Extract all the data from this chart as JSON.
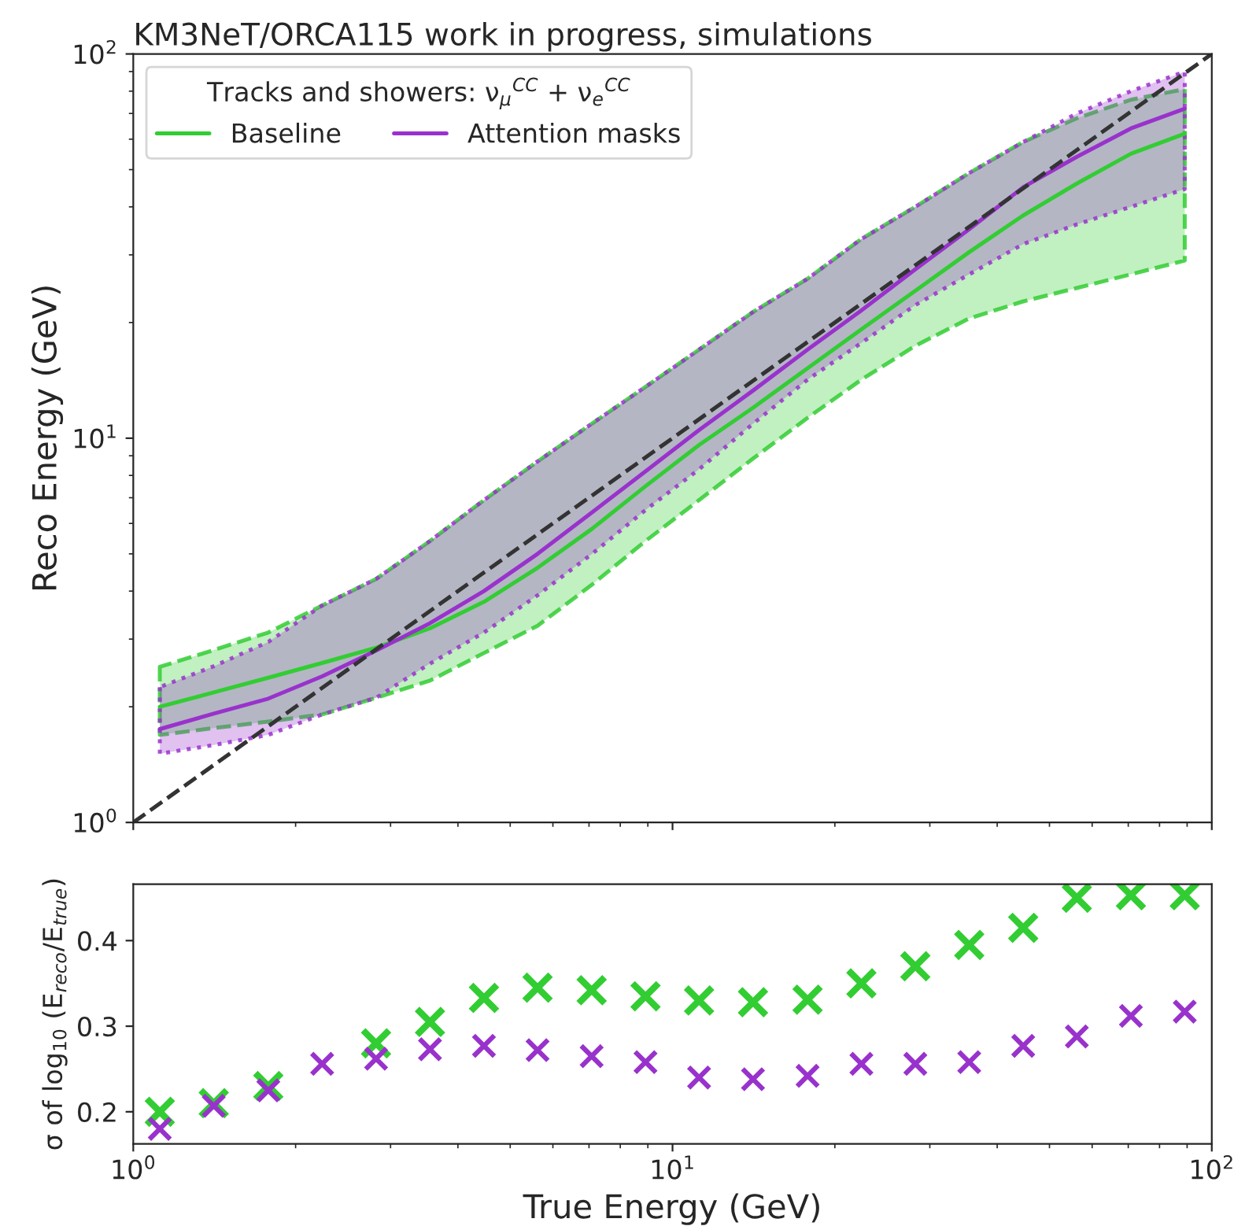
{
  "chart_data": [
    {
      "type": "line",
      "title": "KM3NeT/ORCA115 work in progress, simulations",
      "ylabel": "Reco Energy (GeV)",
      "legend_title": "Tracks and showers: ν$_{μ}$$^{CC}$ + ν$_{e}$$^{CC}$",
      "legend": "top left",
      "log": "xy",
      "tick_labels": "y",
      "line_style": "solid",
      "x": [
        1.12,
        1.41,
        1.78,
        2.24,
        2.82,
        3.55,
        4.47,
        5.62,
        7.08,
        8.91,
        11.2,
        14.1,
        17.8,
        22.4,
        28.2,
        35.5,
        44.7,
        56.2,
        70.8,
        89.1
      ],
      "xlim": [
        1,
        100
      ],
      "ylim": [
        1,
        100
      ],
      "xticks": [
        1,
        10,
        100
      ],
      "yticks": [
        {
          "value": 1,
          "label": "10$^{0}$"
        },
        {
          "value": 10,
          "label": "10$^{1}$"
        },
        {
          "value": 100,
          "label": "10$^{2}$"
        }
      ],
      "series": [
        {
          "name": "Baseline",
          "color": "#32cd32",
          "values": [
            2.0,
            2.18,
            2.38,
            2.6,
            2.85,
            3.2,
            3.75,
            4.6,
            5.8,
            7.5,
            9.6,
            12.0,
            15.2,
            19.2,
            24.2,
            30.5,
            38,
            46,
            55,
            62
          ],
          "lower": [
            1.69,
            1.76,
            1.83,
            1.91,
            2.11,
            2.34,
            2.76,
            3.25,
            4.15,
            5.4,
            6.9,
            8.85,
            11.3,
            14.2,
            17.4,
            20.5,
            22.7,
            24.6,
            26.7,
            29
          ],
          "upper": [
            2.54,
            2.81,
            3.12,
            3.67,
            4.3,
            5.4,
            6.9,
            8.7,
            10.9,
            13.6,
            17,
            21.3,
            26,
            33,
            40,
            49,
            59,
            68,
            76,
            81
          ]
        },
        {
          "name": "Attention masks",
          "color": "#9932cc",
          "values": [
            1.75,
            1.92,
            2.1,
            2.4,
            2.8,
            3.3,
            4.0,
            5.0,
            6.4,
            8.2,
            10.5,
            13.3,
            17,
            21.5,
            27.5,
            35,
            45,
            54,
            64,
            72
          ],
          "lower": [
            1.51,
            1.59,
            1.69,
            1.91,
            2.11,
            2.59,
            3.12,
            3.9,
            4.99,
            6.5,
            8.3,
            10.9,
            14.2,
            17.7,
            22.2,
            26.7,
            32,
            36,
            40,
            44.5
          ],
          "upper": [
            2.25,
            2.55,
            2.95,
            3.67,
            4.3,
            5.4,
            6.9,
            8.7,
            10.9,
            13.6,
            17,
            21.3,
            26,
            33,
            40,
            49,
            59,
            70,
            80,
            90
          ]
        },
        {
          "color": "#333333",
          "line_style": "dashed",
          "x": [
            1,
            100
          ],
          "values": [
            1,
            100
          ]
        }
      ]
    },
    {
      "type": "scatter",
      "xlabel": "True Energy (GeV)",
      "ylabel": "σ of log$_{10}$ (E$_{reco}$/E$_{true}$)",
      "log": "x",
      "marker": "cross",
      "legend": false,
      "x": [
        1.12,
        1.41,
        1.78,
        2.24,
        2.82,
        3.55,
        4.47,
        5.62,
        7.08,
        8.91,
        11.2,
        14.1,
        17.8,
        22.4,
        28.2,
        35.5,
        44.7,
        56.2,
        70.8,
        89.1
      ],
      "xlim": [
        1,
        100
      ],
      "ylim": [
        0.1625,
        0.466
      ],
      "xticks": [
        {
          "value": 1,
          "label": "10$^{0}$"
        },
        {
          "value": 10,
          "label": "10$^{1}$"
        },
        {
          "value": 100,
          "label": "10$^{2}$"
        }
      ],
      "yticks": [
        0.2,
        0.3,
        0.4
      ],
      "series": [
        {
          "color": "#32cd32",
          "values": [
            0.2,
            0.21,
            0.23,
            null,
            0.28,
            0.305,
            0.333,
            0.345,
            0.342,
            0.335,
            0.33,
            0.328,
            0.331,
            0.35,
            0.37,
            0.395,
            0.415,
            0.45,
            0.453,
            0.453
          ]
        },
        {
          "color": "#9932cc",
          "values": [
            0.18,
            0.207,
            0.225,
            0.256,
            0.262,
            0.273,
            0.277,
            0.272,
            0.265,
            0.258,
            0.24,
            0.238,
            0.242,
            0.256,
            0.256,
            0.258,
            0.277,
            0.288,
            0.312,
            0.317
          ]
        }
      ]
    }
  ]
}
